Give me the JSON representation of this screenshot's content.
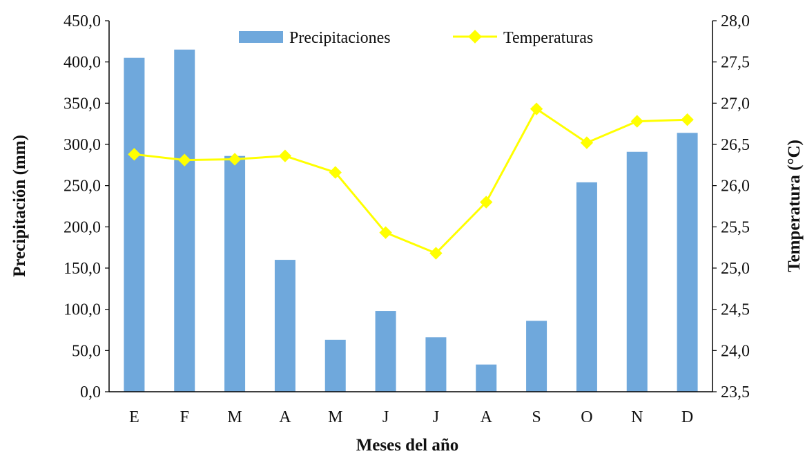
{
  "chart_data": {
    "type": "bar+line",
    "categories": [
      "E",
      "F",
      "M",
      "A",
      "M",
      "J",
      "J",
      "A",
      "S",
      "O",
      "N",
      "D"
    ],
    "series": [
      {
        "name": "Precipitaciones",
        "kind": "bar",
        "axis": "left",
        "values": [
          405,
          415,
          286,
          160,
          63,
          98,
          66,
          33,
          86,
          254,
          291,
          314
        ]
      },
      {
        "name": "Temperaturas",
        "kind": "line",
        "axis": "right",
        "values": [
          26.38,
          26.31,
          26.32,
          26.36,
          26.16,
          25.43,
          25.18,
          25.8,
          26.93,
          26.52,
          26.78,
          26.8
        ]
      }
    ],
    "xlabel": "Meses del año",
    "ylabel": "Precipitación (mm)",
    "y2label": "Temperatura (°C)",
    "ylim": [
      0,
      450
    ],
    "y2lim": [
      23.5,
      28.0
    ],
    "yticks": [
      "0,0",
      "50,0",
      "100,0",
      "150,0",
      "200,0",
      "250,0",
      "300,0",
      "350,0",
      "400,0",
      "450,0"
    ],
    "y2ticks": [
      "23,5",
      "24,0",
      "24,5",
      "25,0",
      "25,5",
      "26,0",
      "26,5",
      "27,0",
      "27,5",
      "28,0"
    ],
    "legend_position": "top-center",
    "grid": false,
    "colors": {
      "bar": "#6fa8dc",
      "line": "#ffff00",
      "axis": "#000000"
    }
  }
}
